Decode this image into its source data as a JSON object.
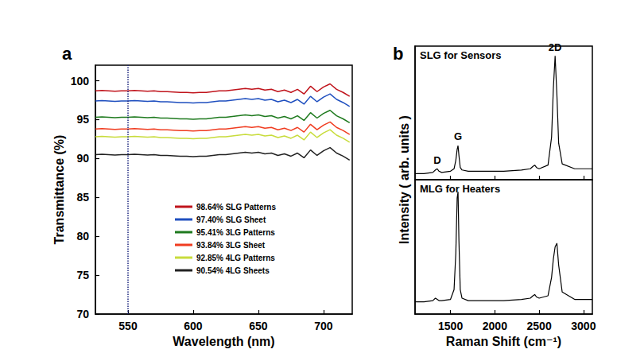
{
  "chart_data": [
    {
      "type": "line",
      "panel_label": "a",
      "xlabel": "Wavelength (nm)",
      "ylabel": "Transmittance (%)",
      "xlim": [
        525,
        722
      ],
      "xticks": [
        550,
        600,
        650,
        700
      ],
      "ylim": [
        70,
        102
      ],
      "yticks": [
        70,
        75,
        80,
        85,
        90,
        95,
        100
      ],
      "grid": false,
      "legend": "right",
      "vline_x": 550,
      "x": [
        525,
        530,
        535,
        540,
        545,
        550,
        555,
        560,
        565,
        570,
        575,
        580,
        585,
        590,
        595,
        600,
        605,
        610,
        615,
        620,
        625,
        630,
        635,
        640,
        645,
        650,
        655,
        660,
        665,
        670,
        675,
        680,
        685,
        690,
        695,
        700,
        705,
        710,
        715,
        720
      ],
      "series": [
        {
          "name": "98.64% SLG Patterns",
          "color": "#c0141c",
          "values": [
            98.7,
            98.75,
            98.7,
            98.65,
            98.7,
            98.7,
            98.75,
            98.7,
            98.65,
            98.7,
            98.6,
            98.6,
            98.55,
            98.5,
            98.5,
            98.45,
            98.5,
            98.5,
            98.6,
            98.7,
            98.7,
            98.8,
            98.9,
            99.0,
            98.9,
            99.0,
            98.8,
            98.9,
            98.6,
            98.8,
            98.5,
            98.9,
            98.3,
            99.3,
            98.6,
            99.2,
            99.6,
            98.9,
            98.5,
            98.0
          ]
        },
        {
          "name": "97.40% SLG Sheet",
          "color": "#1f4fbf",
          "values": [
            97.4,
            97.45,
            97.4,
            97.35,
            97.4,
            97.4,
            97.45,
            97.4,
            97.35,
            97.4,
            97.3,
            97.3,
            97.25,
            97.2,
            97.2,
            97.15,
            97.2,
            97.2,
            97.3,
            97.4,
            97.4,
            97.5,
            97.6,
            97.7,
            97.6,
            97.7,
            97.5,
            97.6,
            97.3,
            97.5,
            97.2,
            97.6,
            97.0,
            98.0,
            97.3,
            97.9,
            98.3,
            97.6,
            97.2,
            96.7
          ]
        },
        {
          "name": "95.41% 3LG Patterns",
          "color": "#1e7a1e",
          "values": [
            95.3,
            95.35,
            95.3,
            95.25,
            95.3,
            95.3,
            95.35,
            95.3,
            95.25,
            95.3,
            95.2,
            95.2,
            95.15,
            95.1,
            95.1,
            95.05,
            95.1,
            95.1,
            95.2,
            95.3,
            95.3,
            95.4,
            95.5,
            95.6,
            95.5,
            95.6,
            95.4,
            95.5,
            95.2,
            95.4,
            95.1,
            95.5,
            94.9,
            95.9,
            95.2,
            95.8,
            96.2,
            95.5,
            95.1,
            94.6
          ]
        },
        {
          "name": "93.84% 3LG Sheet",
          "color": "#f03c20",
          "values": [
            93.8,
            93.85,
            93.8,
            93.75,
            93.8,
            93.8,
            93.85,
            93.8,
            93.75,
            93.8,
            93.7,
            93.7,
            93.65,
            93.6,
            93.6,
            93.55,
            93.6,
            93.6,
            93.7,
            93.8,
            93.8,
            93.9,
            94.0,
            94.1,
            94.0,
            94.1,
            93.9,
            94.0,
            93.7,
            93.9,
            93.6,
            94.0,
            93.4,
            94.4,
            93.7,
            94.3,
            94.7,
            94.0,
            93.6,
            93.1
          ]
        },
        {
          "name": "92.85% 4LG Patterns",
          "color": "#c8dc3c",
          "values": [
            92.8,
            92.85,
            92.8,
            92.75,
            92.8,
            92.8,
            92.85,
            92.8,
            92.75,
            92.8,
            92.7,
            92.7,
            92.65,
            92.6,
            92.6,
            92.55,
            92.6,
            92.6,
            92.7,
            92.8,
            92.8,
            92.9,
            93.0,
            93.1,
            93.0,
            93.1,
            92.9,
            93.0,
            92.7,
            92.9,
            92.6,
            93.0,
            92.4,
            93.4,
            92.7,
            93.3,
            93.7,
            93.0,
            92.6,
            92.1
          ]
        },
        {
          "name": "90.54% 4LG Sheets",
          "color": "#222222",
          "values": [
            90.5,
            90.55,
            90.5,
            90.45,
            90.5,
            90.5,
            90.55,
            90.5,
            90.45,
            90.5,
            90.4,
            90.4,
            90.35,
            90.3,
            90.3,
            90.25,
            90.3,
            90.3,
            90.4,
            90.5,
            90.5,
            90.6,
            90.7,
            90.8,
            90.7,
            90.8,
            90.6,
            90.7,
            90.4,
            90.6,
            90.3,
            90.7,
            90.1,
            91.1,
            90.4,
            91.0,
            91.4,
            90.7,
            90.3,
            89.8
          ]
        }
      ]
    },
    {
      "type": "line",
      "panel_label": "b",
      "title": "SLG for Sensors",
      "ylabel": "Intensity ( arb. units )",
      "xlim": [
        1100,
        3100
      ],
      "xticks": [
        1500,
        2000,
        2500,
        3000
      ],
      "ylim": [
        0,
        1.1
      ],
      "tick_labels": false,
      "color": "#000000",
      "x": [
        1100,
        1200,
        1300,
        1330,
        1350,
        1370,
        1400,
        1500,
        1540,
        1560,
        1575,
        1585,
        1595,
        1610,
        1630,
        1700,
        1900,
        2100,
        2300,
        2400,
        2430,
        2450,
        2470,
        2500,
        2600,
        2640,
        2660,
        2680,
        2700,
        2720,
        2760,
        2900,
        3100
      ],
      "values": [
        0.05,
        0.05,
        0.06,
        0.08,
        0.09,
        0.07,
        0.06,
        0.07,
        0.09,
        0.16,
        0.25,
        0.28,
        0.2,
        0.1,
        0.08,
        0.07,
        0.07,
        0.07,
        0.08,
        0.09,
        0.11,
        0.12,
        0.1,
        0.09,
        0.12,
        0.35,
        0.75,
        1.02,
        0.7,
        0.3,
        0.13,
        0.09,
        0.09
      ],
      "annotations": [
        {
          "text": "D",
          "x": 1350,
          "y": 0.16
        },
        {
          "text": "G",
          "x": 1585,
          "y": 0.36
        },
        {
          "text": "2D",
          "x": 2680,
          "y": 1.09
        }
      ]
    },
    {
      "type": "line",
      "title": "MLG for Heaters",
      "xlabel": "Raman Shift (cm⁻¹)",
      "xlim": [
        1100,
        3100
      ],
      "xticks": [
        1500,
        2000,
        2500,
        3000
      ],
      "ylim": [
        0,
        1.1
      ],
      "tick_labels": "x",
      "color": "#000000",
      "x": [
        1100,
        1200,
        1300,
        1330,
        1350,
        1370,
        1400,
        1500,
        1540,
        1560,
        1575,
        1585,
        1595,
        1610,
        1630,
        1700,
        1900,
        2100,
        2300,
        2400,
        2430,
        2450,
        2470,
        2500,
        2600,
        2640,
        2660,
        2680,
        2700,
        2720,
        2760,
        2900,
        3100
      ],
      "values": [
        0.1,
        0.1,
        0.11,
        0.13,
        0.12,
        0.11,
        0.11,
        0.12,
        0.2,
        0.5,
        0.95,
        1.0,
        0.6,
        0.2,
        0.13,
        0.11,
        0.11,
        0.11,
        0.12,
        0.13,
        0.15,
        0.16,
        0.14,
        0.13,
        0.15,
        0.3,
        0.45,
        0.55,
        0.58,
        0.4,
        0.18,
        0.12,
        0.12
      ]
    }
  ]
}
